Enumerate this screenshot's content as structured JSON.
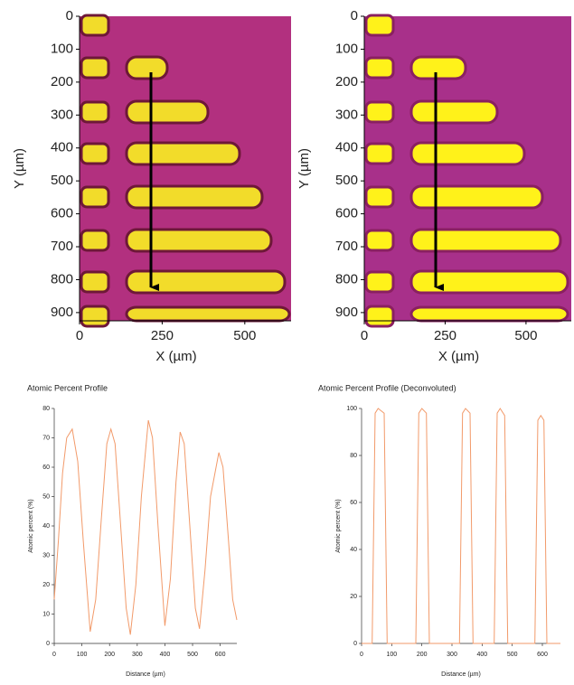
{
  "chart_data": [
    {
      "type": "image",
      "xlabel": "X (µm)",
      "ylabel": "Y (µm)",
      "xlim": [
        0,
        640
      ],
      "ylim": [
        0,
        925
      ],
      "xticks": [
        0,
        250,
        500
      ],
      "yticks": [
        0,
        100,
        200,
        300,
        400,
        500,
        600,
        700,
        800,
        900
      ]
    },
    {
      "type": "image",
      "xlabel": "X (µm)",
      "ylabel": "Y (µm)",
      "xlim": [
        0,
        640
      ],
      "ylim": [
        0,
        925
      ],
      "xticks": [
        0,
        250,
        500
      ],
      "yticks": [
        0,
        100,
        200,
        300,
        400,
        500,
        600,
        700,
        800,
        900
      ]
    },
    {
      "type": "line",
      "title": "Atomic Percent Profile",
      "xlabel": "Distance (µm)",
      "ylabel": "Atomic percent (%)",
      "color": "#f29a6a",
      "x": [
        0,
        15,
        30,
        45,
        65,
        85,
        105,
        130,
        150,
        170,
        190,
        205,
        220,
        240,
        260,
        275,
        295,
        315,
        340,
        355,
        375,
        400,
        420,
        440,
        455,
        470,
        490,
        510,
        525,
        545,
        565,
        595,
        610,
        630,
        645,
        660
      ],
      "values": [
        15,
        35,
        58,
        70,
        73,
        62,
        35,
        4,
        15,
        42,
        68,
        73,
        68,
        40,
        12,
        3,
        20,
        50,
        76,
        70,
        40,
        6,
        22,
        55,
        72,
        68,
        40,
        12,
        5,
        25,
        50,
        65,
        60,
        35,
        15,
        8
      ],
      "xlim": [
        0,
        660
      ],
      "ylim": [
        0,
        80
      ],
      "xticks": [
        0,
        100,
        200,
        300,
        400,
        500,
        600
      ],
      "yticks": [
        0,
        10,
        20,
        30,
        40,
        50,
        60,
        70,
        80
      ]
    },
    {
      "type": "line",
      "title": "Atomic Percent Profile (Deconvoluted)",
      "xlabel": "Distance (µm)",
      "ylabel": "Atomic percent (%)",
      "color": "#f29a6a",
      "x": [
        0,
        35,
        45,
        55,
        75,
        85,
        180,
        190,
        200,
        215,
        225,
        325,
        335,
        345,
        360,
        370,
        440,
        450,
        460,
        475,
        485,
        575,
        585,
        595,
        605,
        615,
        660
      ],
      "values": [
        0,
        0,
        98,
        100,
        98,
        0,
        0,
        98,
        100,
        98,
        0,
        0,
        98,
        100,
        98,
        0,
        0,
        98,
        100,
        97,
        0,
        0,
        95,
        97,
        95,
        0,
        0
      ],
      "xlim": [
        0,
        660
      ],
      "ylim": [
        0,
        100
      ],
      "xticks": [
        0,
        100,
        200,
        300,
        400,
        500,
        600
      ],
      "yticks": [
        0,
        20,
        40,
        60,
        80,
        100
      ]
    }
  ]
}
